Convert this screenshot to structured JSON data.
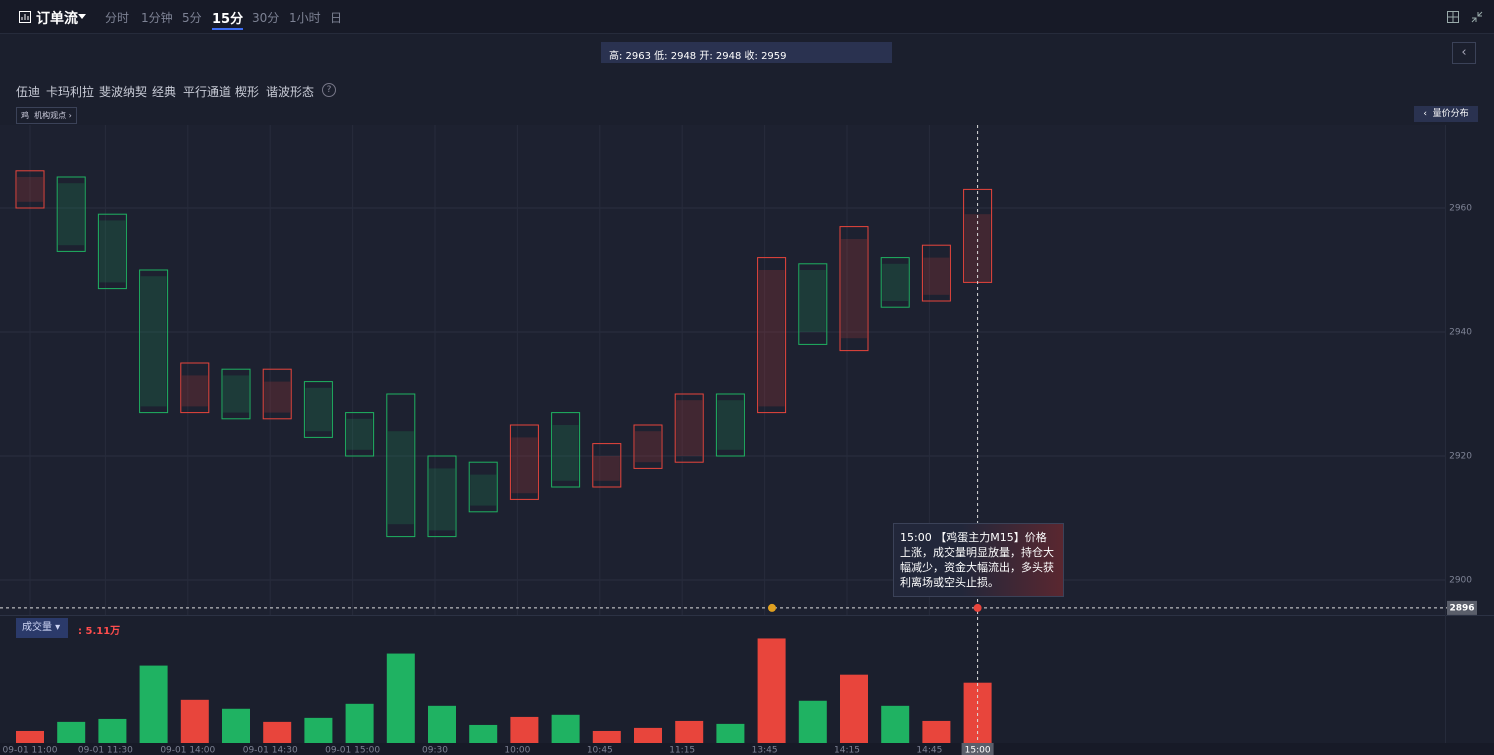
{
  "header": {
    "title": "订单流",
    "tabs": [
      "分时",
      "1分钟",
      "5分",
      "15分",
      "30分",
      "1小时",
      "日"
    ],
    "active_tab": 3
  },
  "info_bar": "高: 2963 低: 2948 开: 2948 收: 2959",
  "tools": [
    "伍迪",
    "卡玛利拉",
    "斐波纳契",
    "经典",
    "平行通道",
    "楔形",
    "谐波形态"
  ],
  "badge": "机构观点",
  "side_button": "量价分布",
  "tooltip": {
    "time": "15:00",
    "text": "【鸡蛋主力M15】价格上涨，成交量明显放量，持仓大幅减少，资金大幅流出，多头获利离场或空头止损。"
  },
  "chart_data": {
    "type": "candlestick",
    "categories": [
      "09-01 11:00",
      null,
      "09-01 11:30",
      null,
      "09-01 14:00",
      null,
      "09-01 14:30",
      null,
      "09-01 15:00",
      null,
      "09:30",
      null,
      "10:00",
      null,
      "10:45",
      null,
      "11:15",
      null,
      "13:45",
      null,
      "14:15",
      null,
      "14:45",
      "15:00"
    ],
    "open": [
      2961,
      2964,
      2958,
      2949,
      2928,
      2933,
      2927,
      2931,
      2926,
      2924,
      2918,
      2917,
      2914,
      2925,
      2916,
      2919,
      2920,
      2929,
      2928,
      2950,
      2939,
      2951,
      2946,
      2948
    ],
    "high": [
      2966,
      2965,
      2959,
      2950,
      2935,
      2934,
      2934,
      2932,
      2927,
      2930,
      2920,
      2919,
      2925,
      2927,
      2922,
      2925,
      2930,
      2930,
      2952,
      2951,
      2957,
      2952,
      2954,
      2963
    ],
    "low": [
      2960,
      2953,
      2947,
      2927,
      2927,
      2926,
      2926,
      2923,
      2920,
      2907,
      2907,
      2911,
      2913,
      2915,
      2915,
      2918,
      2919,
      2920,
      2927,
      2938,
      2937,
      2944,
      2945,
      2948
    ],
    "close": [
      2965,
      2954,
      2948,
      2928,
      2933,
      2927,
      2932,
      2924,
      2921,
      2909,
      2908,
      2912,
      2923,
      2916,
      2920,
      2924,
      2929,
      2921,
      2950,
      2940,
      2955,
      2945,
      2952,
      2959
    ],
    "up_color": "#e8453c",
    "down_color": "#1fb262",
    "ylim": [
      2894,
      2974
    ],
    "yticks": [
      2900,
      2920,
      2940,
      2960
    ],
    "grid": true,
    "crosshair": {
      "value": 2895.5,
      "label": "2896"
    },
    "volume_name": "成交量",
    "volume_label": ": 5.11万",
    "volume": [
      1.02,
      1.79,
      2.04,
      6.56,
      3.66,
      2.9,
      1.79,
      2.13,
      3.32,
      7.58,
      3.15,
      1.53,
      2.21,
      2.39,
      1.02,
      1.28,
      1.87,
      1.62,
      8.86,
      3.58,
      5.79,
      3.15,
      1.87,
      5.11
    ],
    "y2lim": [
      0,
      10
    ]
  }
}
